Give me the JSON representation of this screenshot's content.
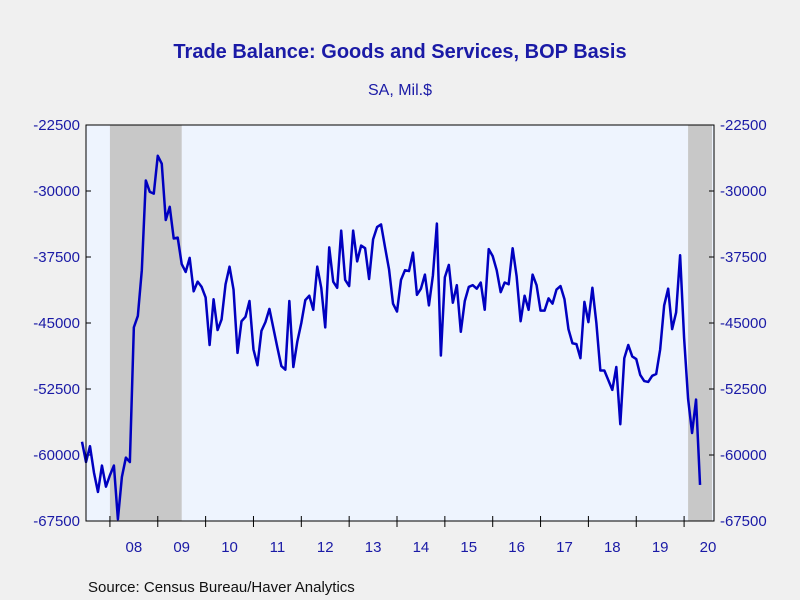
{
  "chart_data": {
    "type": "line",
    "title": "Trade Balance: Goods and Services, BOP Basis",
    "subtitle": "SA, Mil.$",
    "source": "Source:  Census Bureau/Haver Analytics",
    "ylim": [
      -67500,
      -22500
    ],
    "y_ticks": [
      "-22500",
      "-30000",
      "-37500",
      "-45000",
      "-52500",
      "-60000",
      "-67500"
    ],
    "x_tick_labels": [
      "08",
      "09",
      "10",
      "11",
      "12",
      "13",
      "14",
      "15",
      "16",
      "17",
      "18",
      "19",
      "20"
    ],
    "recessions": [
      [
        "2008-01",
        "2009-06"
      ],
      [
        "2020-02",
        "2020-07"
      ]
    ],
    "colors": {
      "line": "#0000c0",
      "text": "#1a1aa6",
      "plot_bg": "#eef4fe",
      "recession": "#c8c8c8",
      "page_bg": "#f0f0f0"
    },
    "series": [
      {
        "start": "2007-06",
        "frequency": "monthly",
        "values": [
          -58500,
          -60800,
          -59000,
          -62000,
          -64200,
          -61200,
          -63600,
          -62300,
          -61200,
          -67300,
          -62500,
          -60300,
          -60800,
          -45500,
          -44200,
          -39000,
          -28800,
          -30100,
          -30300,
          -26000,
          -26900,
          -33300,
          -31800,
          -35400,
          -35300,
          -38300,
          -39200,
          -37600,
          -41400,
          -40300,
          -40900,
          -42100,
          -47500,
          -42300,
          -45800,
          -44600,
          -40600,
          -38600,
          -41200,
          -48400,
          -44800,
          -44300,
          -42500,
          -48000,
          -49800,
          -45900,
          -44900,
          -43400,
          -45600,
          -47800,
          -49900,
          -50300,
          -42500,
          -50000,
          -47100,
          -45000,
          -42400,
          -41900,
          -43500,
          -38600,
          -41000,
          -45500,
          -36400,
          -40300,
          -41000,
          -34500,
          -40100,
          -40800,
          -34500,
          -38000,
          -36200,
          -36500,
          -40000,
          -35500,
          -34100,
          -33800,
          -36400,
          -38900,
          -42800,
          -43700,
          -40100,
          -39000,
          -39100,
          -37000,
          -41800,
          -41100,
          -39500,
          -43000,
          -39600,
          -33700,
          -48700,
          -39800,
          -38400,
          -42700,
          -40700,
          -46000,
          -42500,
          -40900,
          -40700,
          -41100,
          -40400,
          -43500,
          -36600,
          -37400,
          -39000,
          -41500,
          -40400,
          -40600,
          -36500,
          -39700,
          -44800,
          -41900,
          -43500,
          -39500,
          -40700,
          -43600,
          -43600,
          -42200,
          -42800,
          -41200,
          -40800,
          -42300,
          -45700,
          -47300,
          -47400,
          -49000,
          -42600,
          -44900,
          -41000,
          -45000,
          -50400,
          -50400,
          -51500,
          -52600,
          -50000,
          -56500,
          -49000,
          -47500,
          -48800,
          -49100,
          -50900,
          -51600,
          -51700,
          -51000,
          -50800,
          -48000,
          -43000,
          -41100,
          -45700,
          -43800,
          -37300,
          -46700,
          -53600,
          -57500,
          -53700,
          -63400
        ]
      }
    ]
  }
}
